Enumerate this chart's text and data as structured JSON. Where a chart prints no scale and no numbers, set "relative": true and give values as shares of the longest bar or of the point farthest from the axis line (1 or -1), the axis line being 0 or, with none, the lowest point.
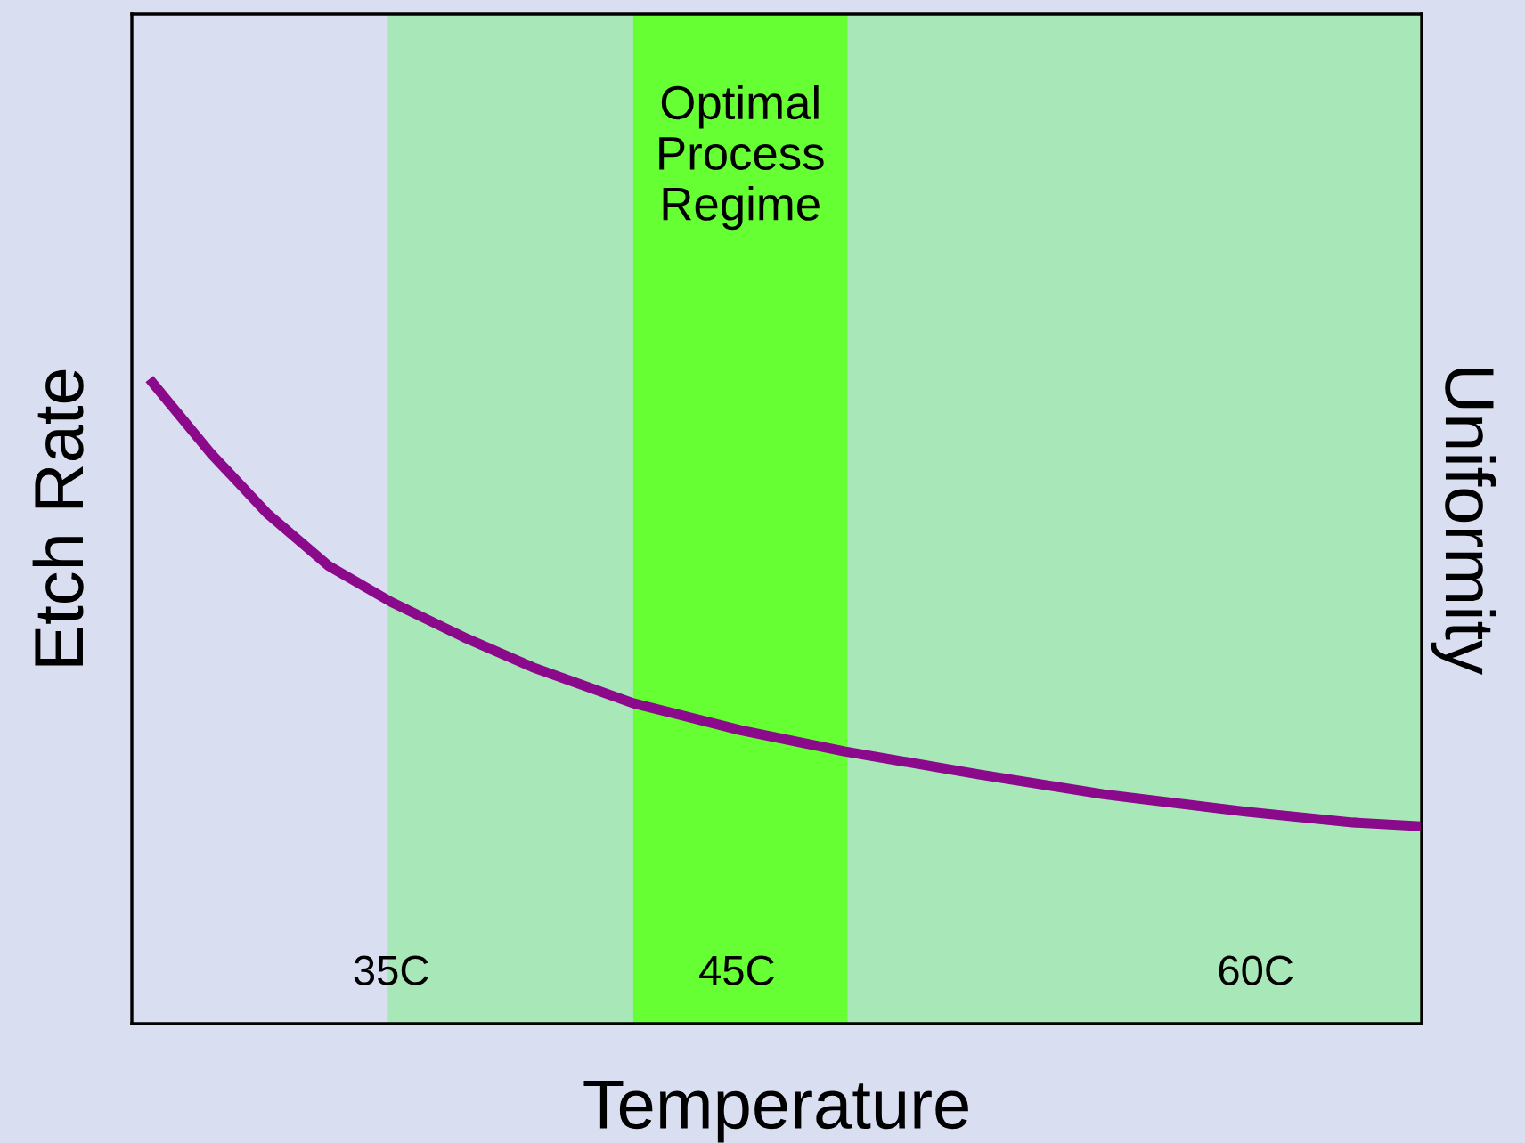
{
  "chart_data": {
    "type": "line",
    "xlabel": "Temperature",
    "ylabel": "Etch Rate",
    "y2label": "Uniformity",
    "relative": true,
    "x": [
      28.1,
      29.8,
      31.4,
      33.2,
      35,
      37.1,
      39.1,
      42.0,
      45.1,
      48.1,
      52.0,
      55.6,
      59.7,
      62.8,
      64.8
    ],
    "series": [
      {
        "color": "#8b0a8b",
        "values": [
          1,
          0.889,
          0.797,
          0.714,
          0.658,
          0.603,
          0.556,
          0.5,
          0.458,
          0.425,
          0.389,
          0.358,
          0.331,
          0.314,
          0.308
        ]
      }
    ],
    "xlim": [
      27.5,
      64.8
    ],
    "xticks": [
      {
        "value": 35,
        "label": "35C"
      },
      {
        "value": 45,
        "label": "45C"
      },
      {
        "value": 60,
        "label": "60C"
      }
    ],
    "bands": [
      {
        "axis": "x",
        "from": 34.9,
        "to": 64.8,
        "color": "#a8e8b8"
      },
      {
        "axis": "x",
        "from": 42.0,
        "to": 48.2,
        "color": "#66ff33",
        "label": "Optimal\nProcess\nRegime"
      }
    ],
    "grid": false,
    "marker": "none",
    "line_style": "solid"
  }
}
